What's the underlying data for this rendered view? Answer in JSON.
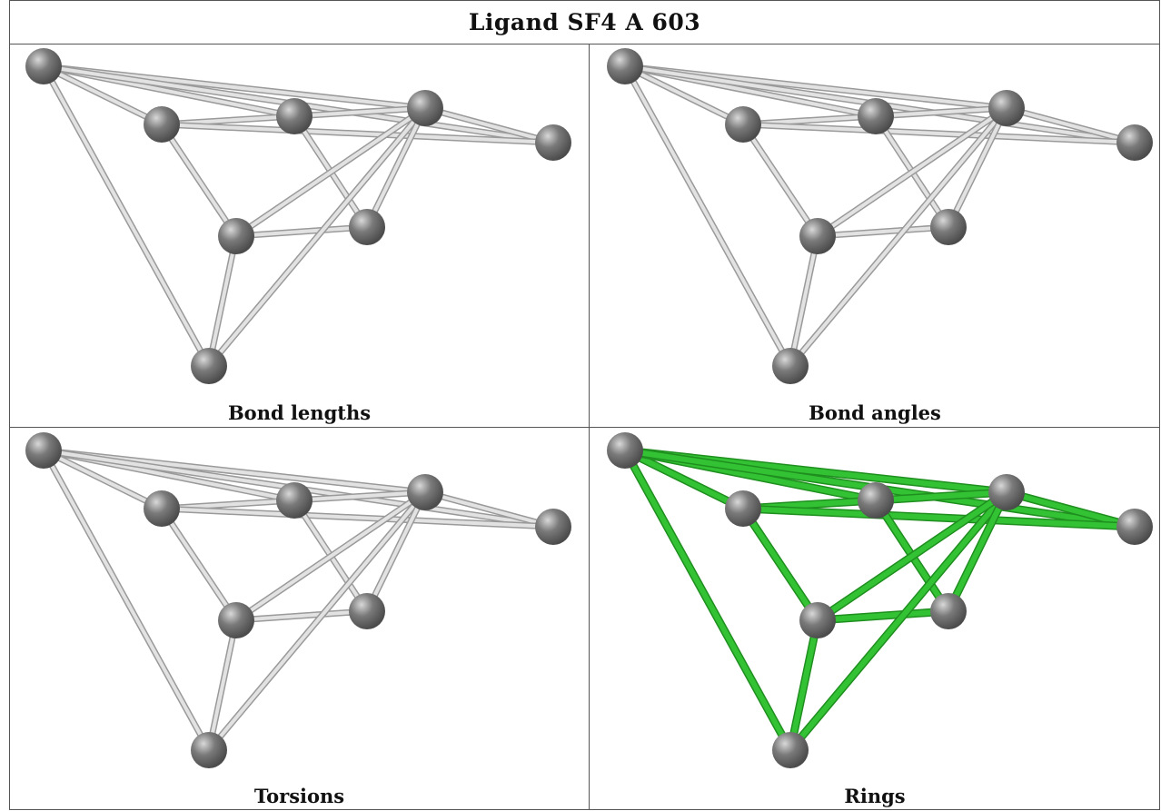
{
  "title": "Ligand SF4 A 603",
  "panels": [
    {
      "id": "bond-lengths",
      "caption": "Bond lengths",
      "highlight": false
    },
    {
      "id": "bond-angles",
      "caption": "Bond angles",
      "highlight": false
    },
    {
      "id": "torsions",
      "caption": "Torsions",
      "highlight": false
    },
    {
      "id": "rings",
      "caption": "Rings",
      "highlight": true
    }
  ],
  "colors": {
    "atom": "#7a7a7a",
    "bond": "#c8c8c8",
    "ring_bond": "#33c233",
    "border": "#555555"
  }
}
